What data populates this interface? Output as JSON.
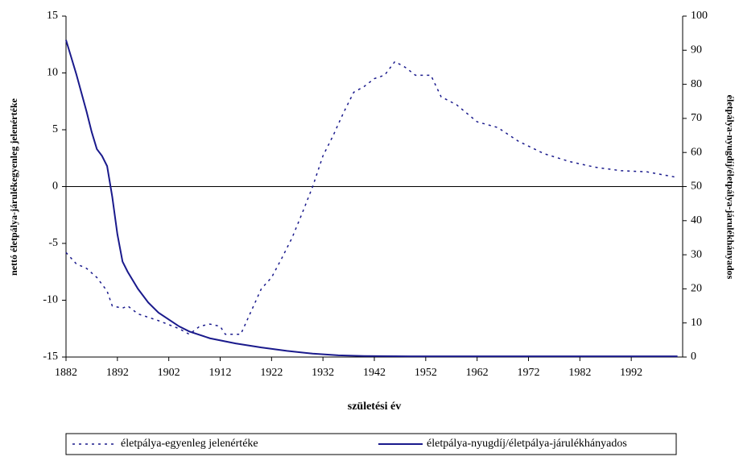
{
  "chart_data": {
    "type": "line",
    "x_label": "születési év",
    "y_label": "nettó életpálya-járulékegyenleg jelenértéke",
    "y2_label": "életpálya-nyugdíj/életpálya-járulékhányados",
    "xlim": [
      1882,
      2002
    ],
    "xticks": [
      1882,
      1892,
      1902,
      1912,
      1922,
      1932,
      1942,
      1952,
      1962,
      1972,
      1982,
      1992
    ],
    "ylim": [
      -15,
      15
    ],
    "yticks": [
      -15,
      -10,
      -5,
      0,
      5,
      10,
      15
    ],
    "y2lim": [
      0,
      100
    ],
    "y2ticks": [
      0,
      10,
      20,
      30,
      40,
      50,
      60,
      70,
      80,
      90,
      100
    ],
    "legend": "bottom",
    "series": [
      {
        "name": "életpálya-egyenleg jelenértéke",
        "color": "#1a1a8c",
        "dash": true,
        "x": [
          1882,
          1884,
          1886,
          1888,
          1890,
          1891,
          1893,
          1894,
          1896,
          1900,
          1904,
          1906,
          1908,
          1910,
          1912,
          1913,
          1916,
          1918,
          1920,
          1922,
          1924,
          1926,
          1928,
          1930,
          1932,
          1934,
          1936,
          1938,
          1940,
          1942,
          1944,
          1946,
          1948,
          1950,
          1953,
          1955,
          1958,
          1962,
          1966,
          1970,
          1975,
          1980,
          1985,
          1990,
          1995,
          2001
        ],
        "values": [
          -5.8,
          -6.8,
          -7.2,
          -8,
          -9.2,
          -10.5,
          -10.7,
          -10.5,
          -11.2,
          -11.8,
          -12.5,
          -13.0,
          -12.3,
          -12.1,
          -12.3,
          -13.0,
          -13.0,
          -11,
          -9,
          -8,
          -6.3,
          -4.5,
          -2.3,
          0,
          2.7,
          4.5,
          6.5,
          8.3,
          8.8,
          9.5,
          9.8,
          11,
          10.5,
          9.8,
          9.8,
          7.9,
          7.2,
          5.7,
          5.2,
          4.0,
          2.9,
          2.2,
          1.7,
          1.4,
          1.3,
          0.8
        ]
      },
      {
        "name": "életpálya-nyugdíj/életpálya-járulékhányados",
        "color": "#1a1a8c",
        "dash": false,
        "axis": "y2",
        "x": [
          1882,
          1883,
          1884,
          1886,
          1887,
          1888,
          1889,
          1890,
          1891,
          1892,
          1893,
          1894,
          1896,
          1898,
          1900,
          1902,
          1904,
          1906,
          1910,
          1915,
          1920,
          1925,
          1930,
          1935,
          1940,
          1950,
          2001
        ],
        "values": [
          93,
          88,
          83,
          72,
          66,
          61,
          59,
          56,
          47,
          36,
          28,
          25,
          20,
          16,
          13,
          11,
          9,
          7.5,
          5.5,
          4,
          2.8,
          1.8,
          1,
          0.5,
          0.3,
          0.2,
          0.2
        ]
      }
    ]
  }
}
